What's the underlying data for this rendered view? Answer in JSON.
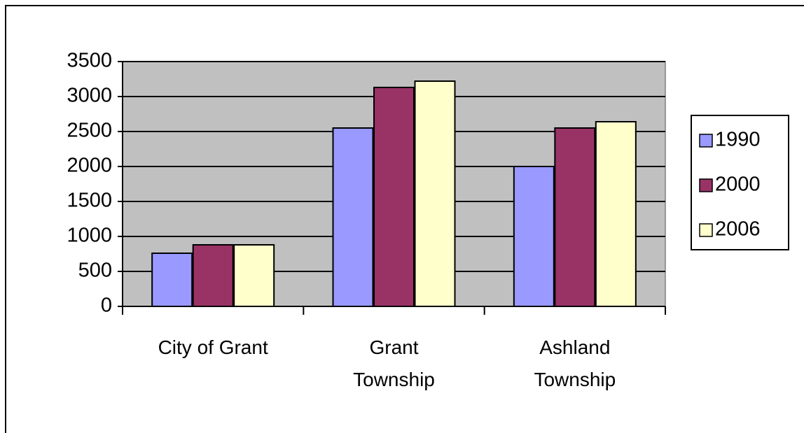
{
  "chart_data": {
    "type": "bar",
    "categories": [
      "City of Grant",
      "Grant Township",
      "Ashland Township"
    ],
    "series": [
      {
        "name": "1990",
        "color": "#9999ff",
        "values": [
          760,
          2550,
          2000
        ]
      },
      {
        "name": "2000",
        "color": "#993366",
        "values": [
          880,
          3130,
          2550
        ]
      },
      {
        "name": "2006",
        "color": "#ffffcc",
        "values": [
          880,
          3220,
          2640
        ]
      }
    ],
    "ylim": [
      0,
      3500
    ],
    "yticks": [
      0,
      500,
      1000,
      1500,
      2000,
      2500,
      3000,
      3500
    ],
    "grid": true,
    "legend": "right"
  }
}
